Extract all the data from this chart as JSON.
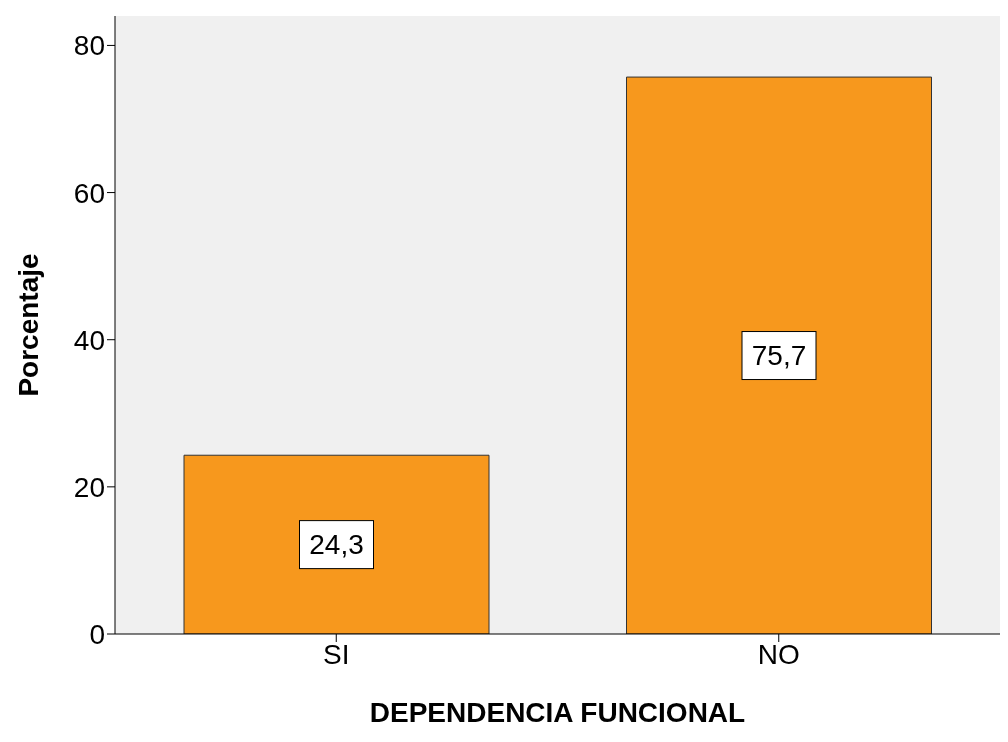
{
  "chart_data": {
    "type": "bar",
    "xlabel": "DEPENDENCIA FUNCIONAL",
    "ylabel": "Porcentaje",
    "categories": [
      "SI",
      "NO"
    ],
    "values": [
      24.3,
      75.7
    ],
    "value_labels": [
      "24,3",
      "75,7"
    ],
    "color": "#f7981d",
    "ylim": [
      0,
      84
    ],
    "yticks": [
      0,
      20,
      40,
      60,
      80
    ],
    "grid": false
  }
}
